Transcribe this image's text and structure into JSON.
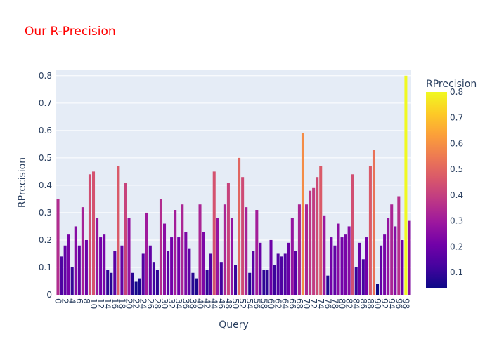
{
  "chart_data": {
    "type": "bar",
    "title": "Our R-Precision",
    "title_color": "#ff0000",
    "xlabel": "Query",
    "ylabel": "RPrecision",
    "ylim": [
      0,
      0.82
    ],
    "yticks": [
      0,
      0.1,
      0.2,
      0.3,
      0.4,
      0.5,
      0.6,
      0.7,
      0.8
    ],
    "ytick_labels": [
      "0",
      "0.1",
      "0.2",
      "0.3",
      "0.4",
      "0.5",
      "0.6",
      "0.7",
      "0.8"
    ],
    "xlim": [
      -0.5,
      99.5
    ],
    "xtick_labels": [
      "0",
      "2",
      "4",
      "6",
      "8",
      "10",
      "12",
      "14",
      "16",
      "18",
      "20",
      "22",
      "24",
      "26",
      "28",
      "30",
      "32",
      "34",
      "36",
      "38",
      "40",
      "42",
      "44",
      "46",
      "48",
      "50",
      "52",
      "54",
      "56",
      "58",
      "60",
      "62",
      "64",
      "66",
      "68",
      "70",
      "72",
      "74",
      "76",
      "78",
      "80",
      "82",
      "84",
      "86",
      "88",
      "90",
      "92",
      "94",
      "96",
      "98"
    ],
    "grid": true,
    "plot_background": "#e5ecf6",
    "colorbar": {
      "title": "RPrecision",
      "range": [
        0.04,
        0.8
      ],
      "ticks": [
        0.1,
        0.2,
        0.3,
        0.4,
        0.5,
        0.6,
        0.7,
        0.8
      ],
      "tick_labels": [
        "0.1",
        "0.2",
        "0.3",
        "0.4",
        "0.5",
        "0.6",
        "0.7",
        "0.8"
      ],
      "colorscale": [
        "#0d0887",
        "#46039f",
        "#7201a8",
        "#9c179e",
        "#bd3786",
        "#d8576b",
        "#ed7953",
        "#fb9f3a",
        "#fdca26",
        "#f0f921"
      ]
    },
    "x": [
      0,
      1,
      2,
      3,
      4,
      5,
      6,
      7,
      8,
      9,
      10,
      11,
      12,
      13,
      14,
      15,
      16,
      17,
      18,
      19,
      20,
      21,
      22,
      23,
      24,
      25,
      26,
      27,
      28,
      29,
      30,
      31,
      32,
      33,
      34,
      35,
      36,
      37,
      38,
      39,
      40,
      41,
      42,
      43,
      44,
      45,
      46,
      47,
      48,
      49,
      50,
      51,
      52,
      53,
      54,
      55,
      56,
      57,
      58,
      59,
      60,
      61,
      62,
      63,
      64,
      65,
      66,
      67,
      68,
      69,
      70,
      71,
      72,
      73,
      74,
      75,
      76,
      77,
      78,
      79,
      80,
      81,
      82,
      83,
      84,
      85,
      86,
      87,
      88,
      89,
      90,
      91,
      92,
      93,
      94,
      95,
      96,
      97,
      98,
      99
    ],
    "values": [
      0.35,
      0.14,
      0.18,
      0.22,
      0.1,
      0.25,
      0.18,
      0.32,
      0.2,
      0.44,
      0.45,
      0.28,
      0.21,
      0.22,
      0.09,
      0.08,
      0.16,
      0.47,
      0.18,
      0.41,
      0.28,
      0.08,
      0.05,
      0.06,
      0.15,
      0.3,
      0.18,
      0.12,
      0.09,
      0.35,
      0.26,
      0.16,
      0.21,
      0.31,
      0.21,
      0.33,
      0.23,
      0.17,
      0.08,
      0.06,
      0.33,
      0.23,
      0.09,
      0.15,
      0.45,
      0.28,
      0.12,
      0.33,
      0.41,
      0.28,
      0.11,
      0.5,
      0.43,
      0.32,
      0.08,
      0.16,
      0.31,
      0.19,
      0.09,
      0.09,
      0.2,
      0.11,
      0.15,
      0.14,
      0.15,
      0.19,
      0.28,
      0.16,
      0.33,
      0.59,
      0.33,
      0.38,
      0.39,
      0.43,
      0.47,
      0.29,
      0.07,
      0.21,
      0.18,
      0.26,
      0.21,
      0.22,
      0.25,
      0.44,
      0.1,
      0.19,
      0.13,
      0.21,
      0.47,
      0.53,
      0.04,
      0.18,
      0.22,
      0.28,
      0.33,
      0.25,
      0.36,
      0.2,
      0.8,
      0.27
    ]
  }
}
